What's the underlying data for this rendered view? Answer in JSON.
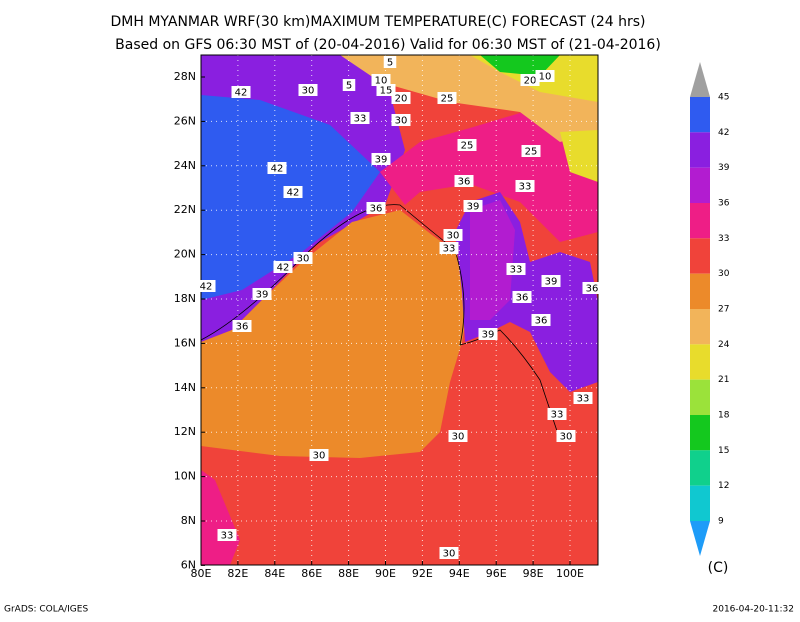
{
  "title": "DMH MYANMAR WRF(30 km)MAXIMUM TEMPERATURE(C) FORECAST (24 hrs)",
  "subtitle": "Based on GFS 06:30 MST of (20-04-2016) Valid for 06:30 MST of (21-04-2016)",
  "map": {
    "lat_labels": [
      "28N",
      "26N",
      "24N",
      "22N",
      "20N",
      "18N",
      "16N",
      "14N",
      "12N",
      "10N",
      "8N",
      "6N"
    ],
    "lon_labels": [
      "80E",
      "82E",
      "84E",
      "86E",
      "88E",
      "90E",
      "92E",
      "94E",
      "96E",
      "98E",
      "100E"
    ],
    "contour_labels": [
      "42",
      "30",
      "5",
      "10",
      "15",
      "20",
      "25",
      "20",
      "10",
      "33",
      "30",
      "39",
      "25",
      "25",
      "42",
      "36",
      "33",
      "42",
      "36",
      "39",
      "30",
      "33",
      "42",
      "30",
      "33",
      "39",
      "42",
      "39",
      "36",
      "36",
      "36",
      "36",
      "39",
      "33",
      "33",
      "30",
      "30",
      "30",
      "33",
      "30",
      "5"
    ]
  },
  "colorbar": {
    "labels": [
      "45",
      "42",
      "39",
      "36",
      "33",
      "30",
      "27",
      "24",
      "21",
      "18",
      "15",
      "12",
      "9"
    ],
    "colors": [
      "#a0a0a0",
      "#2f5bf0",
      "#8a1fe0",
      "#b21cd0",
      "#ee1e86",
      "#f0433a",
      "#ec8a2a",
      "#f2b45a",
      "#e8dc2c",
      "#9be23a",
      "#14c81e",
      "#10d08c",
      "#10c8d0",
      "#1e9cf8"
    ],
    "unit": "(C)"
  },
  "footer": {
    "left": "GrADS: COLA/IGES",
    "right": "2016-04-20-11:32"
  }
}
